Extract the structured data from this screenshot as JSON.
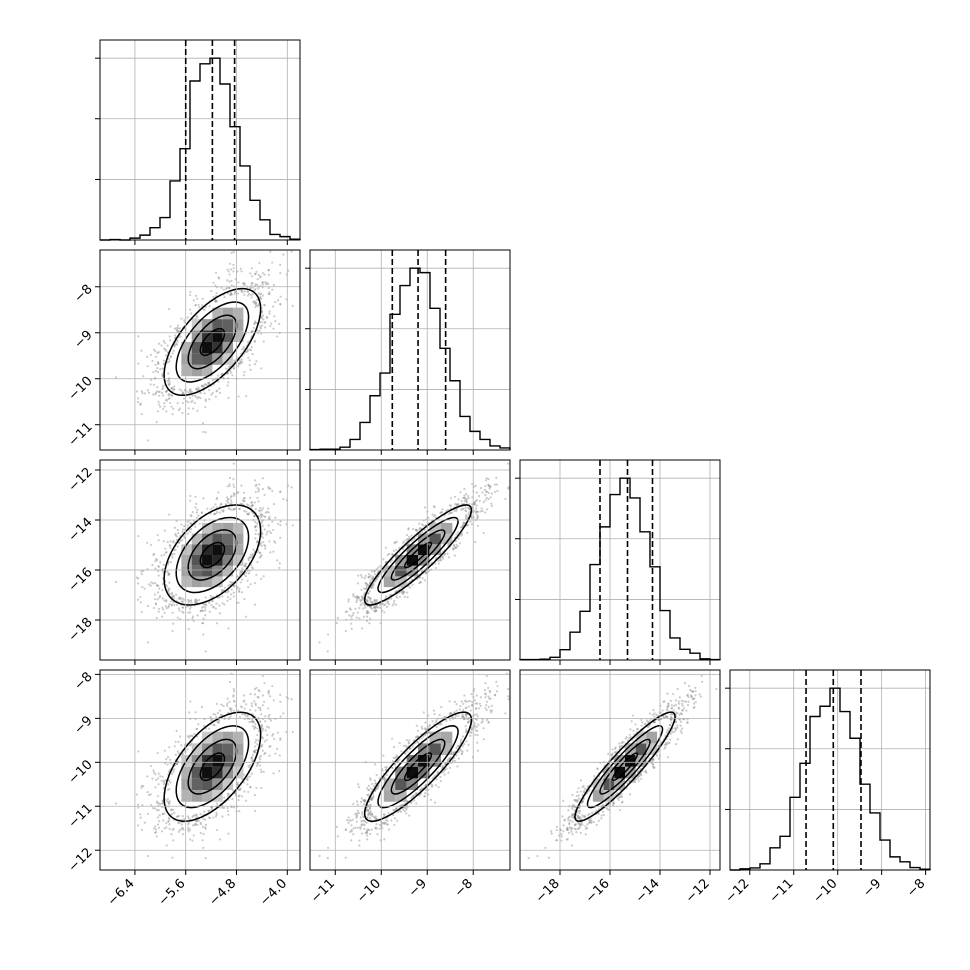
{
  "chart_data": {
    "type": "corner",
    "parameters": [
      {
        "range": [
          -6.95,
          -3.8
        ],
        "ticks": [
          -6.4,
          -5.6,
          -4.8,
          -4.0
        ],
        "tick_labels": [
          "−6.4",
          "−5.6",
          "−4.8",
          "−4.0"
        ],
        "mean": -5.18,
        "sd": 0.38,
        "quantiles": [
          -5.6,
          -5.18,
          -4.83
        ]
      },
      {
        "range": [
          -11.55,
          -7.2
        ],
        "ticks": [
          -11,
          -10,
          -9,
          -8
        ],
        "tick_labels": [
          "−11",
          "−10",
          "−9",
          "−8"
        ],
        "mean": -9.2,
        "sd": 0.58,
        "quantiles": [
          -9.76,
          -9.2,
          -8.6
        ]
      },
      {
        "range": [
          -19.6,
          -11.6
        ],
        "ticks": [
          -18,
          -16,
          -14,
          -12
        ],
        "tick_labels": [
          "−18",
          "−16",
          "−14",
          "−12"
        ],
        "mean": -15.4,
        "sd": 1.0,
        "quantiles": [
          -16.4,
          -15.3,
          -14.3
        ]
      },
      {
        "range": [
          -12.45,
          -7.9
        ],
        "ticks": [
          -12,
          -11,
          -10,
          -9,
          -8
        ],
        "tick_labels": [
          "−12",
          "−11",
          "−10",
          "−9",
          "−8"
        ],
        "mean": -10.1,
        "sd": 0.62,
        "quantiles": [
          -10.72,
          -10.1,
          -9.47
        ]
      }
    ],
    "correlations": [
      [
        1.0,
        0.62,
        0.48,
        0.58
      ],
      [
        0.62,
        1.0,
        0.9,
        0.86
      ],
      [
        0.48,
        0.9,
        1.0,
        0.92
      ],
      [
        0.58,
        0.86,
        0.92,
        1.0
      ]
    ],
    "contour_levels_sigma": [
      0.5,
      1.0,
      1.5,
      2.0
    ],
    "histogram": {
      "bins": 20,
      "style": "step"
    },
    "grid": true
  }
}
